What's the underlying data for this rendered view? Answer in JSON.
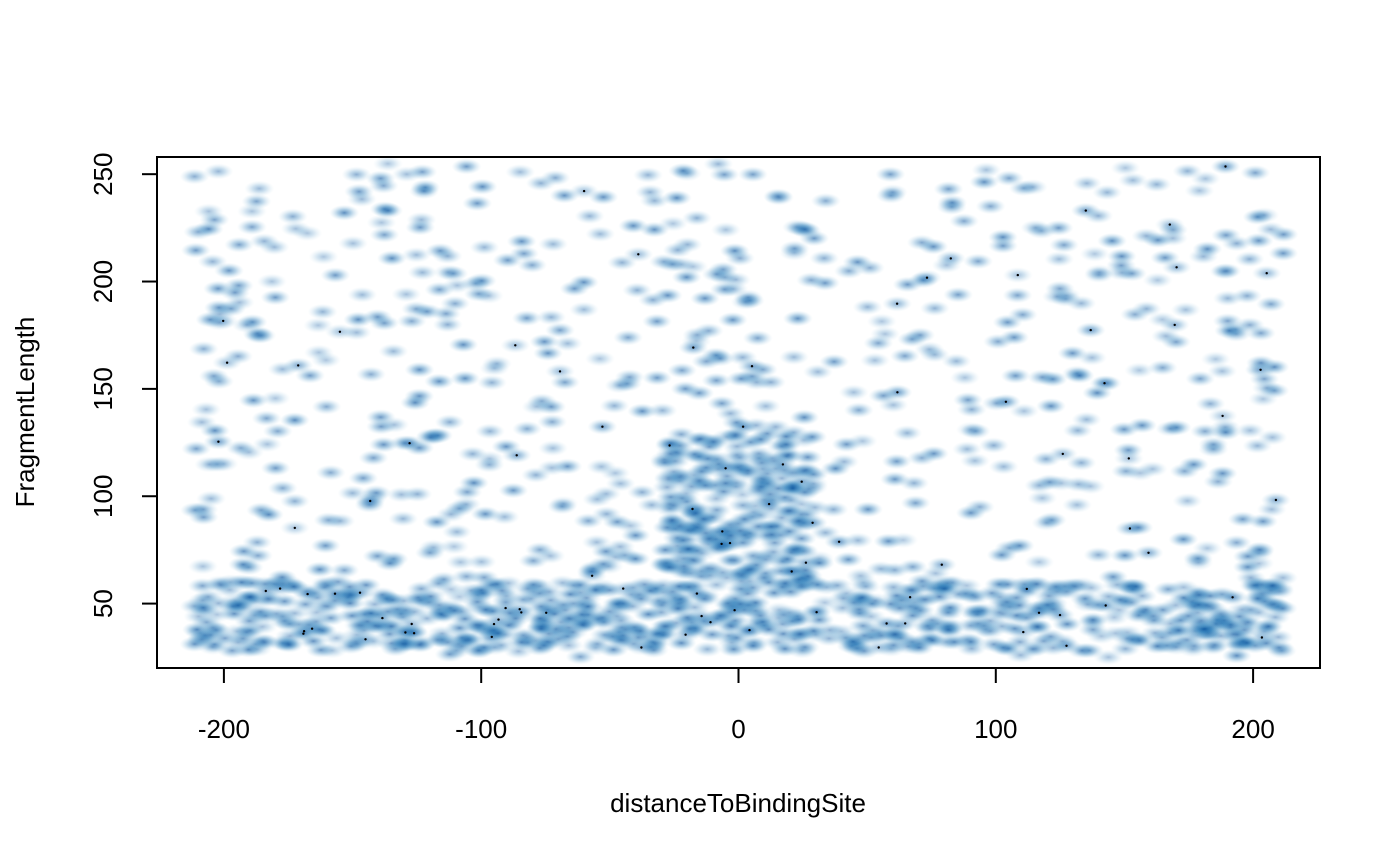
{
  "chart_data": {
    "type": "scatter",
    "style": "smoothScatter",
    "title": "",
    "xlabel": "distanceToBindingSite",
    "ylabel": "FragmentLength",
    "xlim": [
      -226,
      226
    ],
    "ylim": [
      20,
      258
    ],
    "xticks": [
      -200,
      -100,
      0,
      100,
      200
    ],
    "xtick_labels": [
      "-200",
      "-100",
      "0",
      "100",
      "200"
    ],
    "yticks": [
      50,
      100,
      150,
      200,
      250
    ],
    "ytick_labels": [
      "50",
      "100",
      "150",
      "200",
      "250"
    ],
    "grid": false,
    "legend": "none",
    "colors": {
      "low": "#ffffff",
      "mid": "#6baed6",
      "high": "#08306b",
      "point": "#000000"
    },
    "density_bands": [
      {
        "y_range": [
          28,
          60
        ],
        "x_range": [
          -212,
          212
        ],
        "weight": 0.4
      },
      {
        "y_range": [
          60,
          130
        ],
        "x_range": [
          -30,
          30
        ],
        "weight": 0.14
      },
      {
        "y_range": [
          25,
          255
        ],
        "x_range": [
          -212,
          212
        ],
        "weight": 0.46
      }
    ],
    "n_points": 1600
  }
}
